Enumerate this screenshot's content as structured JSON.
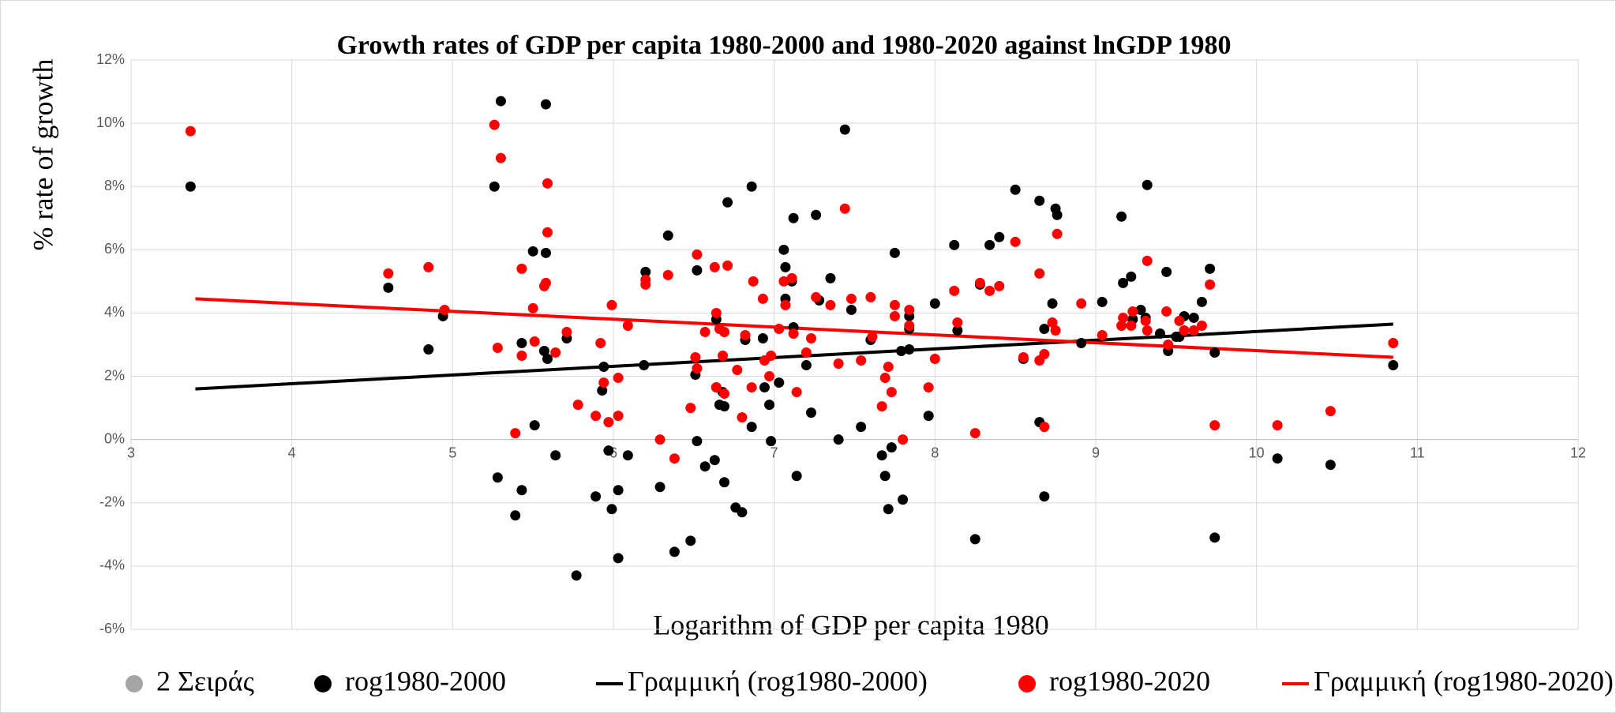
{
  "chart_data": {
    "type": "scatter",
    "title": "Growth rates of GDP per capita 1980-2000 and 1980-2020 against lnGDP 1980",
    "x_label": "Logarithm of GDP per capita 1980",
    "y_label": "% rate of growth",
    "xlim": [
      3,
      12
    ],
    "xticks": [
      3,
      4,
      5,
      6,
      7,
      8,
      9,
      10,
      11,
      12
    ],
    "ylim": [
      -6,
      12
    ],
    "yticks": [
      {
        "value": -6,
        "label": "-6%"
      },
      {
        "value": -4,
        "label": "-4%"
      },
      {
        "value": -2,
        "label": "-2%"
      },
      {
        "value": 0,
        "label": "0%"
      },
      {
        "value": 2,
        "label": "2%"
      },
      {
        "value": 4,
        "label": "4%"
      },
      {
        "value": 6,
        "label": "6%"
      },
      {
        "value": 8,
        "label": "8%"
      },
      {
        "value": 10,
        "label": "10%"
      },
      {
        "value": 12,
        "label": "12%"
      }
    ],
    "grid": true,
    "legend": "bottom",
    "series": [
      {
        "name": "2 Σειράς",
        "color": "#a5a5a5",
        "mode": "markers",
        "x": [],
        "values": []
      },
      {
        "name": "rog1980-2000",
        "color": "#000000",
        "mode": "markers",
        "x": [
          3.37,
          4.6,
          4.85,
          4.94,
          5.26,
          5.3,
          5.28,
          5.39,
          5.43,
          5.43,
          5.5,
          5.51,
          5.58,
          5.58,
          5.57,
          5.59,
          5.64,
          5.71,
          5.77,
          5.89,
          5.93,
          5.94,
          5.97,
          5.99,
          6.03,
          6.03,
          6.09,
          6.19,
          6.2,
          6.29,
          6.34,
          6.38,
          6.48,
          6.51,
          6.52,
          6.52,
          6.57,
          6.63,
          6.64,
          6.64,
          6.66,
          6.68,
          6.69,
          6.69,
          6.71,
          6.76,
          6.8,
          6.82,
          6.86,
          6.86,
          6.93,
          6.94,
          6.97,
          6.98,
          7.03,
          7.06,
          7.07,
          7.07,
          7.11,
          7.12,
          7.12,
          7.14,
          7.2,
          7.23,
          7.26,
          7.28,
          7.35,
          7.4,
          7.44,
          7.48,
          7.54,
          7.6,
          7.67,
          7.69,
          7.71,
          7.73,
          7.75,
          7.79,
          7.8,
          7.84,
          7.84,
          7.84,
          7.96,
          8.0,
          8.12,
          8.14,
          8.25,
          8.28,
          8.34,
          8.4,
          8.5,
          8.55,
          8.65,
          8.65,
          8.68,
          8.68,
          8.73,
          8.75,
          8.76,
          8.91,
          9.04,
          9.16,
          9.17,
          9.22,
          9.23,
          9.28,
          9.32,
          9.31,
          9.4,
          9.44,
          9.45,
          9.5,
          9.52,
          9.55,
          9.61,
          9.66,
          9.71,
          9.74,
          9.74,
          10.13,
          10.46,
          10.85
        ],
        "values": [
          8.0,
          4.8,
          2.85,
          3.9,
          8.0,
          10.7,
          -1.2,
          -2.4,
          -1.6,
          3.05,
          5.95,
          0.45,
          10.6,
          5.9,
          2.8,
          2.55,
          -0.5,
          3.2,
          -4.3,
          -1.8,
          1.55,
          2.3,
          -0.35,
          -2.2,
          -1.6,
          -3.75,
          -0.5,
          2.35,
          5.3,
          -1.5,
          6.45,
          -3.55,
          -3.2,
          2.05,
          -0.05,
          5.35,
          -0.85,
          -0.65,
          3.8,
          1.65,
          1.1,
          1.5,
          1.05,
          -1.35,
          7.5,
          -2.15,
          -2.3,
          3.15,
          0.4,
          8.0,
          3.2,
          1.65,
          1.1,
          -0.05,
          1.8,
          6.0,
          4.45,
          5.45,
          5.0,
          7.0,
          3.55,
          -1.15,
          2.35,
          0.85,
          7.1,
          4.4,
          5.1,
          0.0,
          9.8,
          4.1,
          0.4,
          3.15,
          -0.5,
          -1.15,
          -2.2,
          -0.25,
          5.9,
          2.8,
          -1.9,
          2.85,
          3.9,
          3.5,
          0.75,
          4.3,
          6.15,
          3.45,
          -3.15,
          4.9,
          6.15,
          6.4,
          7.9,
          2.55,
          7.55,
          0.55,
          -1.8,
          3.5,
          4.3,
          7.3,
          7.1,
          3.05,
          4.35,
          7.05,
          4.95,
          5.15,
          3.8,
          4.1,
          8.05,
          3.85,
          3.35,
          5.3,
          2.8,
          3.25,
          3.25,
          3.9,
          3.85,
          4.35,
          5.4,
          -3.1,
          2.75,
          -0.6,
          -0.8,
          2.35
        ]
      },
      {
        "name": "Γραμμική (rog1980-2000)",
        "color": "#000000",
        "mode": "line",
        "x": [
          3.4,
          10.85
        ],
        "values": [
          1.6,
          3.65
        ]
      },
      {
        "name": "rog1980-2020",
        "color": "#ff0000",
        "mode": "markers",
        "x": [
          3.37,
          4.6,
          4.85,
          4.95,
          5.26,
          5.3,
          5.28,
          5.39,
          5.43,
          5.43,
          5.5,
          5.51,
          5.57,
          5.58,
          5.59,
          5.59,
          5.64,
          5.71,
          5.78,
          5.89,
          5.92,
          5.94,
          5.97,
          5.99,
          6.03,
          6.03,
          6.09,
          6.2,
          6.2,
          6.29,
          6.34,
          6.38,
          6.48,
          6.51,
          6.52,
          6.52,
          6.57,
          6.63,
          6.64,
          6.64,
          6.66,
          6.68,
          6.69,
          6.69,
          6.71,
          6.77,
          6.8,
          6.82,
          6.86,
          6.87,
          6.93,
          6.94,
          6.97,
          6.98,
          7.03,
          7.06,
          7.07,
          7.11,
          7.12,
          7.14,
          7.2,
          7.23,
          7.26,
          7.35,
          7.4,
          7.44,
          7.48,
          7.54,
          7.6,
          7.61,
          7.67,
          7.69,
          7.71,
          7.73,
          7.75,
          7.75,
          7.8,
          7.84,
          7.84,
          7.96,
          8.0,
          8.12,
          8.14,
          8.25,
          8.28,
          8.34,
          8.4,
          8.5,
          8.55,
          8.65,
          8.65,
          8.68,
          8.68,
          8.73,
          8.75,
          8.76,
          8.91,
          9.04,
          9.16,
          9.17,
          9.22,
          9.23,
          9.31,
          9.32,
          9.32,
          9.44,
          9.45,
          9.52,
          9.55,
          9.61,
          9.66,
          9.71,
          9.74,
          10.13,
          10.46,
          10.85
        ],
        "values": [
          9.75,
          5.25,
          5.45,
          4.1,
          9.95,
          8.9,
          2.9,
          0.2,
          2.65,
          5.4,
          4.15,
          3.1,
          4.85,
          4.95,
          6.55,
          8.1,
          2.75,
          3.4,
          1.1,
          0.75,
          3.05,
          1.8,
          0.55,
          4.25,
          1.95,
          0.75,
          3.6,
          5.05,
          4.9,
          0.0,
          5.2,
          -0.6,
          1.0,
          2.6,
          5.85,
          2.25,
          3.4,
          5.45,
          1.65,
          4.0,
          3.5,
          2.65,
          1.45,
          3.4,
          5.5,
          2.2,
          0.7,
          3.3,
          1.65,
          5.0,
          4.45,
          2.5,
          2.0,
          2.65,
          3.5,
          5.0,
          4.25,
          5.1,
          3.35,
          1.5,
          2.75,
          3.2,
          4.5,
          4.25,
          2.4,
          7.3,
          4.45,
          2.5,
          4.5,
          3.25,
          1.05,
          1.95,
          2.3,
          1.5,
          4.25,
          3.9,
          0.0,
          4.1,
          3.6,
          1.65,
          2.55,
          4.7,
          3.7,
          0.2,
          4.95,
          4.7,
          4.85,
          6.25,
          2.6,
          5.25,
          2.5,
          0.4,
          2.7,
          3.7,
          3.45,
          6.5,
          4.3,
          3.3,
          3.6,
          3.85,
          3.6,
          4.05,
          3.75,
          5.65,
          3.45,
          4.05,
          3.0,
          3.75,
          3.45,
          3.45,
          3.6,
          4.9,
          0.45,
          0.45,
          0.9,
          3.05
        ]
      },
      {
        "name": "Γραμμική (rog1980-2020)",
        "color": "#ff0000",
        "mode": "line",
        "x": [
          3.4,
          10.85
        ],
        "values": [
          4.45,
          2.6
        ]
      }
    ]
  }
}
